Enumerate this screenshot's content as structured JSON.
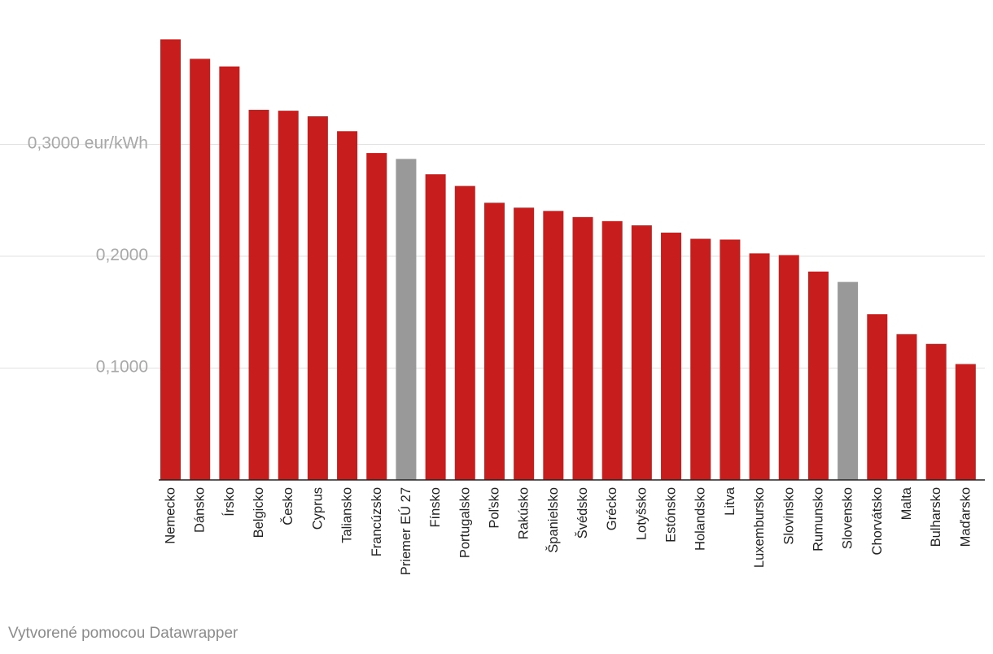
{
  "chart_data": {
    "type": "bar",
    "title": "",
    "xlabel": "",
    "ylabel": "",
    "ylim": [
      0,
      0.4
    ],
    "y_ticks": [
      {
        "value": 0.1,
        "label": "0,1000"
      },
      {
        "value": 0.2,
        "label": "0,2000"
      },
      {
        "value": 0.3,
        "label": "0,3000 eur/kWh"
      }
    ],
    "categories": [
      "Nemecko",
      "Dánsko",
      "Írsko",
      "Belgicko",
      "Česko",
      "Cyprus",
      "Taliansko",
      "Francúzsko",
      "Priemer EÚ 27",
      "Fínsko",
      "Portugalsko",
      "Poľsko",
      "Rakúsko",
      "Španielsko",
      "Švédsko",
      "Grécko",
      "Lotyšsko",
      "Estónsko",
      "Holandsko",
      "Litva",
      "Luxembursko",
      "Slovinsko",
      "Rumunsko",
      "Slovensko",
      "Chorvátsko",
      "Malta",
      "Bulharsko",
      "Maďarsko"
    ],
    "values": [
      0.3939,
      0.3765,
      0.3697,
      0.3309,
      0.3301,
      0.3251,
      0.3118,
      0.2923,
      0.287,
      0.2733,
      0.2628,
      0.2478,
      0.2434,
      0.2405,
      0.235,
      0.2314,
      0.2276,
      0.2211,
      0.2156,
      0.2149,
      0.2026,
      0.201,
      0.1863,
      0.177,
      0.1482,
      0.1303,
      0.1216,
      0.1036
    ],
    "highlight": [
      "Priemer EÚ 27",
      "Slovensko"
    ],
    "colors": {
      "bar": "#c71e1d",
      "highlight": "#999999"
    }
  },
  "footer": {
    "credit": "Vytvorené pomocou Datawrapper"
  }
}
